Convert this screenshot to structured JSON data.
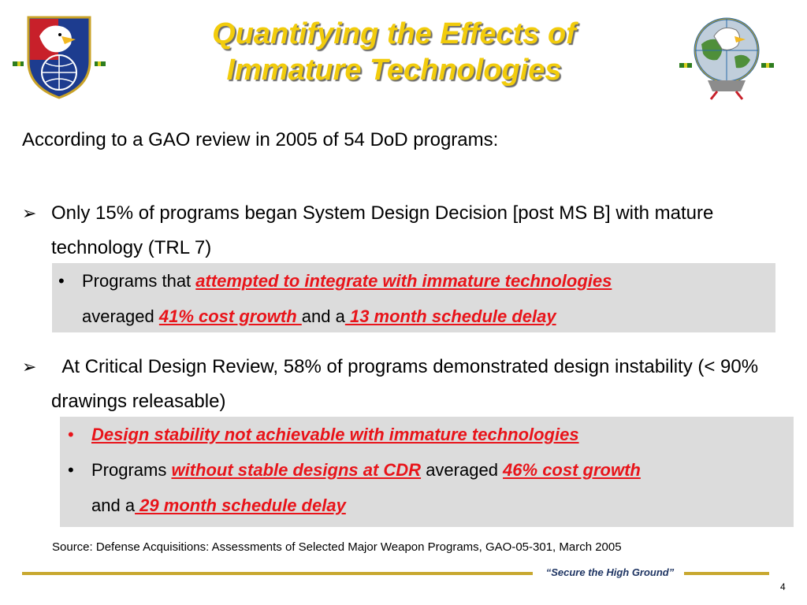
{
  "slide": {
    "title_line1": "Quantifying the Effects of",
    "title_line2": "Immature Technologies",
    "intro": "According to a GAO review in 2005 of 54 DoD programs:",
    "bullet1": {
      "marker": "➢",
      "text": "Only 15% of programs began System Design Decision [post MS B] with mature technology (TRL 7)",
      "sub": {
        "a": "Programs that ",
        "b": "attempted to integrate with immature technologies",
        "c": "averaged ",
        "d": "41% cost growth ",
        "e": "and a",
        "f": " 13 month schedule delay"
      }
    },
    "bullet2": {
      "marker": "➢",
      "text": "  At Critical Design Review, 58% of programs demonstrated design instability (< 90% drawings releasable)",
      "sub1": "Design stability not achievable with immature technologies",
      "sub2": {
        "a": "Programs ",
        "b": "without stable designs at CDR",
        "c": " averaged ",
        "d": "46% cost growth",
        "e": "and a",
        "f": " 29 month schedule delay"
      }
    },
    "sub_dot": "•",
    "source": "Source: Defense Acquisitions: Assessments of Selected Major Weapon Programs, GAO-05-301, March 2005",
    "motto": "“Secure the High Ground”",
    "page_number": "4"
  },
  "colors": {
    "title": "#f2cc0c",
    "highlight": "#e8141a",
    "box": "#dcdcdc",
    "rule": "#c8a830"
  },
  "icons": {
    "left": "army-space-shield-logo",
    "right": "globe-eagle-logo"
  }
}
